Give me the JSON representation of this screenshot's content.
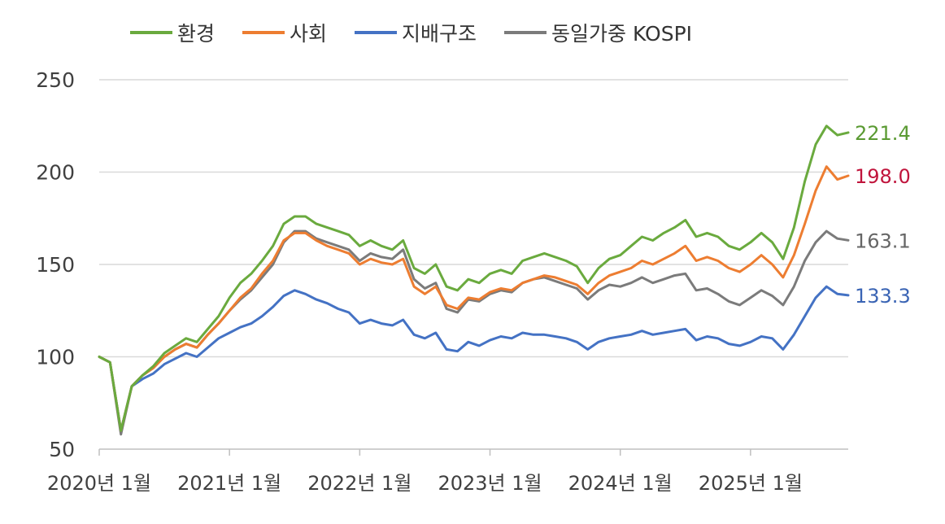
{
  "chart_data": {
    "type": "line",
    "title": "",
    "xlabel": "",
    "ylabel": "",
    "ylim": [
      50,
      250
    ],
    "yticks": [
      50,
      100,
      150,
      200,
      250
    ],
    "xlim": [
      "2020-01",
      "2025-10"
    ],
    "xticks": [
      {
        "date": "2020-01",
        "label": "2020년 1월"
      },
      {
        "date": "2021-01",
        "label": "2021년 1월"
      },
      {
        "date": "2022-01",
        "label": "2022년 1월"
      },
      {
        "date": "2023-01",
        "label": "2023년 1월"
      },
      {
        "date": "2024-01",
        "label": "2024년 1월"
      },
      {
        "date": "2025-01",
        "label": "2025년 1월"
      }
    ],
    "grid": true,
    "legend_position": "top",
    "series": [
      {
        "name": "환경",
        "color": "#6aaa3e",
        "end_label": "221.4",
        "end_label_color": "#5a9a32",
        "points": [
          [
            "2020-01",
            100
          ],
          [
            "2020-02",
            97
          ],
          [
            "2020-03",
            60
          ],
          [
            "2020-04",
            84
          ],
          [
            "2020-05",
            90
          ],
          [
            "2020-06",
            95
          ],
          [
            "2020-07",
            102
          ],
          [
            "2020-08",
            106
          ],
          [
            "2020-09",
            110
          ],
          [
            "2020-10",
            108
          ],
          [
            "2020-11",
            115
          ],
          [
            "2020-12",
            122
          ],
          [
            "2021-01",
            132
          ],
          [
            "2021-02",
            140
          ],
          [
            "2021-03",
            145
          ],
          [
            "2021-04",
            152
          ],
          [
            "2021-05",
            160
          ],
          [
            "2021-06",
            172
          ],
          [
            "2021-07",
            176
          ],
          [
            "2021-08",
            176
          ],
          [
            "2021-09",
            172
          ],
          [
            "2021-10",
            170
          ],
          [
            "2021-11",
            168
          ],
          [
            "2021-12",
            166
          ],
          [
            "2022-01",
            160
          ],
          [
            "2022-02",
            163
          ],
          [
            "2022-03",
            160
          ],
          [
            "2022-04",
            158
          ],
          [
            "2022-05",
            163
          ],
          [
            "2022-06",
            148
          ],
          [
            "2022-07",
            145
          ],
          [
            "2022-08",
            150
          ],
          [
            "2022-09",
            138
          ],
          [
            "2022-10",
            136
          ],
          [
            "2022-11",
            142
          ],
          [
            "2022-12",
            140
          ],
          [
            "2023-01",
            145
          ],
          [
            "2023-02",
            147
          ],
          [
            "2023-03",
            145
          ],
          [
            "2023-04",
            152
          ],
          [
            "2023-05",
            154
          ],
          [
            "2023-06",
            156
          ],
          [
            "2023-07",
            154
          ],
          [
            "2023-08",
            152
          ],
          [
            "2023-09",
            149
          ],
          [
            "2023-10",
            140
          ],
          [
            "2023-11",
            148
          ],
          [
            "2023-12",
            153
          ],
          [
            "2024-01",
            155
          ],
          [
            "2024-02",
            160
          ],
          [
            "2024-03",
            165
          ],
          [
            "2024-04",
            163
          ],
          [
            "2024-05",
            167
          ],
          [
            "2024-06",
            170
          ],
          [
            "2024-07",
            174
          ],
          [
            "2024-08",
            165
          ],
          [
            "2024-09",
            167
          ],
          [
            "2024-10",
            165
          ],
          [
            "2024-11",
            160
          ],
          [
            "2024-12",
            158
          ],
          [
            "2025-01",
            162
          ],
          [
            "2025-02",
            167
          ],
          [
            "2025-03",
            162
          ],
          [
            "2025-04",
            153
          ],
          [
            "2025-05",
            170
          ],
          [
            "2025-06",
            195
          ],
          [
            "2025-07",
            215
          ],
          [
            "2025-08",
            225
          ],
          [
            "2025-09",
            220
          ],
          [
            "2025-10",
            221.4
          ]
        ]
      },
      {
        "name": "사회",
        "color": "#ed7d31",
        "end_label": "198.0",
        "end_label_color": "#c0143c",
        "points": [
          [
            "2020-01",
            100
          ],
          [
            "2020-02",
            97
          ],
          [
            "2020-03",
            60
          ],
          [
            "2020-04",
            84
          ],
          [
            "2020-05",
            90
          ],
          [
            "2020-06",
            94
          ],
          [
            "2020-07",
            100
          ],
          [
            "2020-08",
            104
          ],
          [
            "2020-09",
            107
          ],
          [
            "2020-10",
            105
          ],
          [
            "2020-11",
            112
          ],
          [
            "2020-12",
            118
          ],
          [
            "2021-01",
            125
          ],
          [
            "2021-02",
            132
          ],
          [
            "2021-03",
            137
          ],
          [
            "2021-04",
            145
          ],
          [
            "2021-05",
            152
          ],
          [
            "2021-06",
            163
          ],
          [
            "2021-07",
            167
          ],
          [
            "2021-08",
            167
          ],
          [
            "2021-09",
            163
          ],
          [
            "2021-10",
            160
          ],
          [
            "2021-11",
            158
          ],
          [
            "2021-12",
            156
          ],
          [
            "2022-01",
            150
          ],
          [
            "2022-02",
            153
          ],
          [
            "2022-03",
            151
          ],
          [
            "2022-04",
            150
          ],
          [
            "2022-05",
            153
          ],
          [
            "2022-06",
            138
          ],
          [
            "2022-07",
            134
          ],
          [
            "2022-08",
            138
          ],
          [
            "2022-09",
            128
          ],
          [
            "2022-10",
            126
          ],
          [
            "2022-11",
            132
          ],
          [
            "2022-12",
            131
          ],
          [
            "2023-01",
            135
          ],
          [
            "2023-02",
            137
          ],
          [
            "2023-03",
            136
          ],
          [
            "2023-04",
            140
          ],
          [
            "2023-05",
            142
          ],
          [
            "2023-06",
            144
          ],
          [
            "2023-07",
            143
          ],
          [
            "2023-08",
            141
          ],
          [
            "2023-09",
            139
          ],
          [
            "2023-10",
            134
          ],
          [
            "2023-11",
            140
          ],
          [
            "2023-12",
            144
          ],
          [
            "2024-01",
            146
          ],
          [
            "2024-02",
            148
          ],
          [
            "2024-03",
            152
          ],
          [
            "2024-04",
            150
          ],
          [
            "2024-05",
            153
          ],
          [
            "2024-06",
            156
          ],
          [
            "2024-07",
            160
          ],
          [
            "2024-08",
            152
          ],
          [
            "2024-09",
            154
          ],
          [
            "2024-10",
            152
          ],
          [
            "2024-11",
            148
          ],
          [
            "2024-12",
            146
          ],
          [
            "2025-01",
            150
          ],
          [
            "2025-02",
            155
          ],
          [
            "2025-03",
            150
          ],
          [
            "2025-04",
            143
          ],
          [
            "2025-05",
            155
          ],
          [
            "2025-06",
            172
          ],
          [
            "2025-07",
            190
          ],
          [
            "2025-08",
            203
          ],
          [
            "2025-09",
            196
          ],
          [
            "2025-10",
            198.0
          ]
        ]
      },
      {
        "name": "지배구조",
        "color": "#4472c4",
        "end_label": "133.3",
        "end_label_color": "#3a64b4",
        "points": [
          [
            "2020-01",
            100
          ],
          [
            "2020-02",
            97
          ],
          [
            "2020-03",
            60
          ],
          [
            "2020-04",
            84
          ],
          [
            "2020-05",
            88
          ],
          [
            "2020-06",
            91
          ],
          [
            "2020-07",
            96
          ],
          [
            "2020-08",
            99
          ],
          [
            "2020-09",
            102
          ],
          [
            "2020-10",
            100
          ],
          [
            "2020-11",
            105
          ],
          [
            "2020-12",
            110
          ],
          [
            "2021-01",
            113
          ],
          [
            "2021-02",
            116
          ],
          [
            "2021-03",
            118
          ],
          [
            "2021-04",
            122
          ],
          [
            "2021-05",
            127
          ],
          [
            "2021-06",
            133
          ],
          [
            "2021-07",
            136
          ],
          [
            "2021-08",
            134
          ],
          [
            "2021-09",
            131
          ],
          [
            "2021-10",
            129
          ],
          [
            "2021-11",
            126
          ],
          [
            "2021-12",
            124
          ],
          [
            "2022-01",
            118
          ],
          [
            "2022-02",
            120
          ],
          [
            "2022-03",
            118
          ],
          [
            "2022-04",
            117
          ],
          [
            "2022-05",
            120
          ],
          [
            "2022-06",
            112
          ],
          [
            "2022-07",
            110
          ],
          [
            "2022-08",
            113
          ],
          [
            "2022-09",
            104
          ],
          [
            "2022-10",
            103
          ],
          [
            "2022-11",
            108
          ],
          [
            "2022-12",
            106
          ],
          [
            "2023-01",
            109
          ],
          [
            "2023-02",
            111
          ],
          [
            "2023-03",
            110
          ],
          [
            "2023-04",
            113
          ],
          [
            "2023-05",
            112
          ],
          [
            "2023-06",
            112
          ],
          [
            "2023-07",
            111
          ],
          [
            "2023-08",
            110
          ],
          [
            "2023-09",
            108
          ],
          [
            "2023-10",
            104
          ],
          [
            "2023-11",
            108
          ],
          [
            "2023-12",
            110
          ],
          [
            "2024-01",
            111
          ],
          [
            "2024-02",
            112
          ],
          [
            "2024-03",
            114
          ],
          [
            "2024-04",
            112
          ],
          [
            "2024-05",
            113
          ],
          [
            "2024-06",
            114
          ],
          [
            "2024-07",
            115
          ],
          [
            "2024-08",
            109
          ],
          [
            "2024-09",
            111
          ],
          [
            "2024-10",
            110
          ],
          [
            "2024-11",
            107
          ],
          [
            "2024-12",
            106
          ],
          [
            "2025-01",
            108
          ],
          [
            "2025-02",
            111
          ],
          [
            "2025-03",
            110
          ],
          [
            "2025-04",
            104
          ],
          [
            "2025-05",
            112
          ],
          [
            "2025-06",
            122
          ],
          [
            "2025-07",
            132
          ],
          [
            "2025-08",
            138
          ],
          [
            "2025-09",
            134
          ],
          [
            "2025-10",
            133.3
          ]
        ]
      },
      {
        "name": "동일가중 KOSPI",
        "color": "#7b7b7b",
        "end_label": "163.1",
        "end_label_color": "#666666",
        "points": [
          [
            "2020-01",
            100
          ],
          [
            "2020-02",
            97
          ],
          [
            "2020-03",
            58
          ],
          [
            "2020-04",
            84
          ],
          [
            "2020-05",
            90
          ],
          [
            "2020-06",
            94
          ],
          [
            "2020-07",
            100
          ],
          [
            "2020-08",
            104
          ],
          [
            "2020-09",
            107
          ],
          [
            "2020-10",
            105
          ],
          [
            "2020-11",
            112
          ],
          [
            "2020-12",
            118
          ],
          [
            "2021-01",
            125
          ],
          [
            "2021-02",
            131
          ],
          [
            "2021-03",
            136
          ],
          [
            "2021-04",
            143
          ],
          [
            "2021-05",
            150
          ],
          [
            "2021-06",
            162
          ],
          [
            "2021-07",
            168
          ],
          [
            "2021-08",
            168
          ],
          [
            "2021-09",
            164
          ],
          [
            "2021-10",
            162
          ],
          [
            "2021-11",
            160
          ],
          [
            "2021-12",
            158
          ],
          [
            "2022-01",
            152
          ],
          [
            "2022-02",
            156
          ],
          [
            "2022-03",
            154
          ],
          [
            "2022-04",
            153
          ],
          [
            "2022-05",
            158
          ],
          [
            "2022-06",
            142
          ],
          [
            "2022-07",
            137
          ],
          [
            "2022-08",
            140
          ],
          [
            "2022-09",
            126
          ],
          [
            "2022-10",
            124
          ],
          [
            "2022-11",
            131
          ],
          [
            "2022-12",
            130
          ],
          [
            "2023-01",
            134
          ],
          [
            "2023-02",
            136
          ],
          [
            "2023-03",
            135
          ],
          [
            "2023-04",
            140
          ],
          [
            "2023-05",
            142
          ],
          [
            "2023-06",
            143
          ],
          [
            "2023-07",
            141
          ],
          [
            "2023-08",
            139
          ],
          [
            "2023-09",
            137
          ],
          [
            "2023-10",
            131
          ],
          [
            "2023-11",
            136
          ],
          [
            "2023-12",
            139
          ],
          [
            "2024-01",
            138
          ],
          [
            "2024-02",
            140
          ],
          [
            "2024-03",
            143
          ],
          [
            "2024-04",
            140
          ],
          [
            "2024-05",
            142
          ],
          [
            "2024-06",
            144
          ],
          [
            "2024-07",
            145
          ],
          [
            "2024-08",
            136
          ],
          [
            "2024-09",
            137
          ],
          [
            "2024-10",
            134
          ],
          [
            "2024-11",
            130
          ],
          [
            "2024-12",
            128
          ],
          [
            "2025-01",
            132
          ],
          [
            "2025-02",
            136
          ],
          [
            "2025-03",
            133
          ],
          [
            "2025-04",
            128
          ],
          [
            "2025-05",
            138
          ],
          [
            "2025-06",
            152
          ],
          [
            "2025-07",
            162
          ],
          [
            "2025-08",
            168
          ],
          [
            "2025-09",
            164
          ],
          [
            "2025-10",
            163.1
          ]
        ]
      }
    ]
  }
}
